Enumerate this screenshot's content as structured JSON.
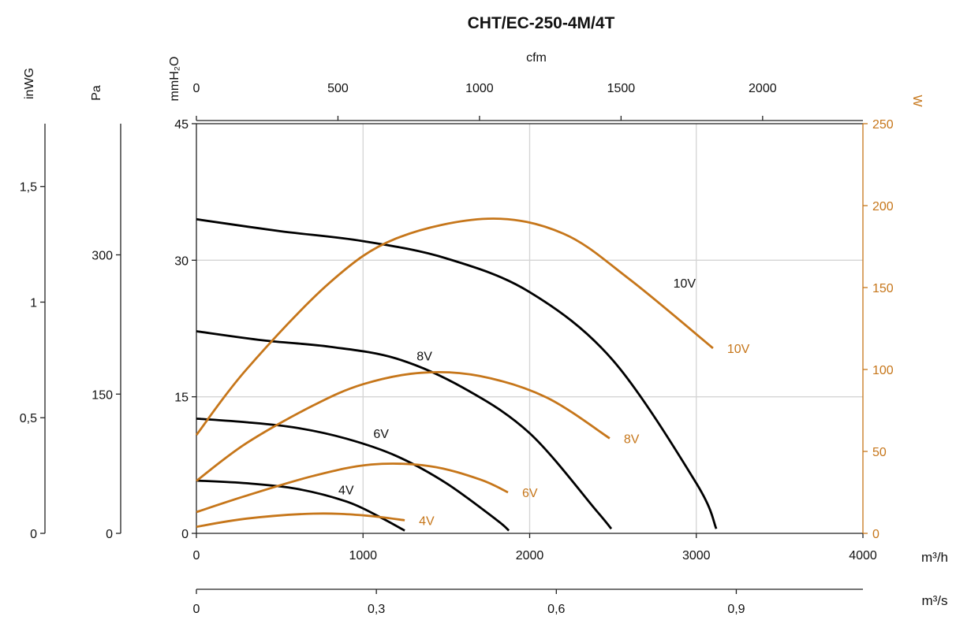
{
  "chart_data": {
    "type": "line",
    "title": "CHT/EC-250-4M/4T",
    "x_primary": {
      "unit": "m³/h",
      "range": [
        0,
        4000
      ],
      "ticks": [
        0,
        1000,
        2000,
        3000,
        4000
      ]
    },
    "x_secondary_ms": {
      "unit": "m³/s",
      "ticks": [
        0,
        0.3,
        0.6,
        0.9
      ],
      "tick_labels": [
        "0",
        "0,3",
        "0,6",
        "0,9"
      ],
      "m3h_per_unit": 3600
    },
    "x_top_cfm": {
      "unit": "cfm",
      "ticks": [
        0,
        500,
        1000,
        1500,
        2000
      ],
      "m3h_per_unit": 1.699
    },
    "y_pressure_mmH2O": {
      "unit": "mmH₂O",
      "range": [
        0,
        45
      ],
      "ticks": [
        0,
        15,
        30,
        45
      ]
    },
    "y_pressure_Pa": {
      "unit": "Pa",
      "ticks": [
        0,
        150,
        300
      ],
      "mmH2O_per_unit": 0.10197
    },
    "y_pressure_inWG": {
      "unit": "inWG",
      "ticks": [
        0,
        0.5,
        1,
        1.5
      ],
      "tick_labels": [
        "0",
        "0,5",
        "1",
        "1,5"
      ],
      "mmH2O_per_unit": 25.4
    },
    "y_power_W": {
      "unit": "W",
      "range": [
        0,
        250
      ],
      "ticks": [
        0,
        50,
        100,
        150,
        200,
        250
      ]
    },
    "grid": true,
    "pressure_series": [
      {
        "name": "10V",
        "x": [
          0,
          500,
          1000,
          1500,
          2000,
          2500,
          3000,
          3120
        ],
        "y": [
          34.5,
          33.2,
          32.1,
          30.2,
          26.5,
          19.0,
          5.5,
          0.5
        ]
      },
      {
        "name": "8V",
        "x": [
          0,
          400,
          800,
          1200,
          1600,
          2000,
          2400,
          2490
        ],
        "y": [
          22.2,
          21.2,
          20.5,
          19.2,
          16.0,
          11.0,
          2.5,
          0.5
        ]
      },
      {
        "name": "6V",
        "x": [
          0,
          300,
          600,
          900,
          1200,
          1500,
          1800,
          1875
        ],
        "y": [
          12.6,
          12.2,
          11.6,
          10.4,
          8.5,
          5.5,
          1.5,
          0.3
        ]
      },
      {
        "name": "4V",
        "x": [
          0,
          300,
          600,
          900,
          1100,
          1250
        ],
        "y": [
          5.8,
          5.5,
          4.9,
          3.5,
          1.8,
          0.3
        ]
      }
    ],
    "power_series": [
      {
        "name": "10V",
        "x": [
          0,
          300,
          800,
          1200,
          1750,
          2200,
          2600,
          3100
        ],
        "y": [
          60,
          100,
          153,
          180,
          192,
          183,
          155,
          113
        ]
      },
      {
        "name": "8V",
        "x": [
          0,
          300,
          700,
          1000,
          1350,
          1700,
          2100,
          2480
        ],
        "y": [
          32,
          55,
          78,
          91,
          98,
          96,
          83,
          58
        ]
      },
      {
        "name": "6V",
        "x": [
          0,
          300,
          700,
          1050,
          1400,
          1700,
          1870
        ],
        "y": [
          13,
          23,
          35,
          42,
          41,
          33,
          25
        ]
      },
      {
        "name": "4V",
        "x": [
          0,
          300,
          700,
          1000,
          1250
        ],
        "y": [
          4,
          9,
          12,
          11,
          8
        ]
      }
    ],
    "colors": {
      "pressure": "#000000",
      "power": "#c6761a",
      "grid": "#d4d4d4"
    }
  }
}
